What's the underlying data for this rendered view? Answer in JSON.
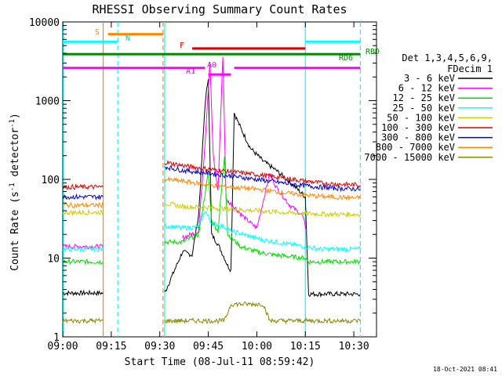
{
  "chart_data": {
    "type": "line",
    "title": "RHESSI Observing Summary Count Rates",
    "xlabel": "Start Time (08-Jul-11 08:59:42)",
    "ylabel_main": "Count Rate (s",
    "ylabel_sup1": "-1",
    "ylabel_mid": " detector",
    "ylabel_sup2": "-1",
    "ylabel_end": ")",
    "footer": "18-Oct-2021 08:41",
    "x_range_minutes": [
      0,
      97
    ],
    "y_range": [
      1,
      10000
    ],
    "y_scale": "log",
    "x_ticks": [
      {
        "m": 0,
        "label": "09:00"
      },
      {
        "m": 15,
        "label": "09:15"
      },
      {
        "m": 30,
        "label": "09:30"
      },
      {
        "m": 45,
        "label": "09:45"
      },
      {
        "m": 60,
        "label": "10:00"
      },
      {
        "m": 75,
        "label": "10:15"
      },
      {
        "m": 90,
        "label": "10:30"
      }
    ],
    "y_ticks": [
      {
        "v": 1,
        "label": "1"
      },
      {
        "v": 10,
        "label": "10"
      },
      {
        "v": 100,
        "label": "100"
      },
      {
        "v": 1000,
        "label": "1000"
      },
      {
        "v": 10000,
        "label": "10000"
      }
    ],
    "legend": {
      "header1": "Det 1,3,4,5,6,9,",
      "header2": "FDecim 1",
      "entries": [
        {
          "label": "3 - 6 keV",
          "color": "#000000"
        },
        {
          "label": "6 - 12 keV",
          "color": "#ff00ff"
        },
        {
          "label": "12 - 25 keV",
          "color": "#00dd00"
        },
        {
          "label": "25 - 50 keV",
          "color": "#00ffff"
        },
        {
          "label": "50 - 100 keV",
          "color": "#cccc00"
        },
        {
          "label": "100 - 300 keV",
          "color": "#dd0000"
        },
        {
          "label": "300 - 800 keV",
          "color": "#0000dd"
        },
        {
          "label": "800 - 7000 keV",
          "color": "#ff8800"
        },
        {
          "label": "7000 - 15000 keV",
          "color": "#888800"
        }
      ]
    },
    "flag_labels": [
      {
        "text": "S",
        "color": "#ff8800"
      },
      {
        "text": "N",
        "color": "#00ffff"
      },
      {
        "text": "F",
        "color": "#dd0000"
      },
      {
        "text": "A1",
        "color": "#ff00ff"
      },
      {
        "text": "A0",
        "color": "#ff00ff"
      },
      {
        "text": "RD6",
        "color": "#008800"
      },
      {
        "text": "RBD",
        "color": "#008800"
      }
    ],
    "series": [
      {
        "name": "3 - 6 keV",
        "segments": [
          [
            [
              0,
              3.6
            ],
            [
              12.5,
              3.6
            ]
          ],
          [
            [
              31.5,
              3.6
            ],
            [
              37,
              12
            ],
            [
              40,
              11
            ],
            [
              42,
              35
            ],
            [
              44,
              900
            ],
            [
              45,
              2000
            ],
            [
              46,
              20
            ],
            [
              48,
              15
            ],
            [
              50,
              10
            ],
            [
              51,
              8
            ],
            [
              52,
              7
            ],
            [
              53,
              700
            ],
            [
              55,
              450
            ],
            [
              58,
              250
            ],
            [
              62,
              170
            ],
            [
              66,
              130
            ],
            [
              70,
              95
            ],
            [
              75,
              60
            ],
            [
              76,
              3.5
            ],
            [
              92,
              3.5
            ]
          ]
        ]
      },
      {
        "name": "6 - 12 keV",
        "segments": [
          [
            [
              0,
              14
            ],
            [
              12.5,
              14
            ]
          ],
          [
            [
              37,
              18
            ],
            [
              42,
              22
            ],
            [
              44,
              300
            ],
            [
              45.5,
              3200
            ],
            [
              46.5,
              200
            ],
            [
              48,
              70
            ],
            [
              49.5,
              3800
            ],
            [
              50.5,
              55
            ],
            [
              53,
              45
            ],
            [
              56,
              33
            ],
            [
              60,
              24
            ],
            [
              64,
              120
            ],
            [
              66,
              80
            ],
            [
              70,
              48
            ],
            [
              74,
              35
            ],
            [
              75.5,
              22
            ]
          ]
        ]
      },
      {
        "name": "12 - 25 keV",
        "segments": [
          [
            [
              0,
              9
            ],
            [
              12.5,
              9
            ]
          ],
          [
            [
              31.5,
              16
            ],
            [
              37,
              16
            ],
            [
              42,
              20
            ],
            [
              45,
              120
            ],
            [
              46,
              30
            ],
            [
              48,
              22
            ],
            [
              50,
              200
            ],
            [
              51,
              20
            ],
            [
              55,
              14
            ],
            [
              60,
              12
            ],
            [
              65,
              11
            ],
            [
              70,
              10.5
            ],
            [
              75,
              10
            ],
            [
              76,
              9
            ],
            [
              92,
              9
            ]
          ]
        ]
      },
      {
        "name": "25 - 50 keV",
        "segments": [
          [
            [
              0,
              13
            ],
            [
              12.5,
              13
            ]
          ],
          [
            [
              31.5,
              26
            ],
            [
              37,
              24
            ],
            [
              42,
              25
            ],
            [
              44,
              40
            ],
            [
              46,
              28
            ],
            [
              50,
              25
            ],
            [
              52,
              22
            ],
            [
              56,
              20
            ],
            [
              62,
              17
            ],
            [
              68,
              15.5
            ],
            [
              75,
              14
            ],
            [
              80,
              13
            ],
            [
              92,
              13
            ]
          ]
        ]
      },
      {
        "name": "50 - 100 keV",
        "segments": [
          [
            [
              0,
              38
            ],
            [
              12.5,
              38
            ]
          ],
          [
            [
              31.5,
              50
            ],
            [
              37,
              45
            ],
            [
              45,
              44
            ],
            [
              52,
              42
            ],
            [
              60,
              40
            ],
            [
              68,
              38
            ],
            [
              75,
              37
            ],
            [
              82,
              36
            ],
            [
              92,
              36
            ]
          ]
        ]
      },
      {
        "name": "100 - 300 keV",
        "segments": [
          [
            [
              0,
              80
            ],
            [
              12.5,
              80
            ]
          ],
          [
            [
              31.5,
              165
            ],
            [
              37,
              150
            ],
            [
              45,
              135
            ],
            [
              52,
              125
            ],
            [
              60,
              115
            ],
            [
              68,
              105
            ],
            [
              75,
              95
            ],
            [
              82,
              88
            ],
            [
              92,
              85
            ]
          ]
        ]
      },
      {
        "name": "300 - 800 keV",
        "segments": [
          [
            [
              0,
              60
            ],
            [
              12.5,
              60
            ]
          ],
          [
            [
              31.5,
              145
            ],
            [
              37,
              130
            ],
            [
              45,
              120
            ],
            [
              52,
              110
            ],
            [
              60,
              100
            ],
            [
              68,
              90
            ],
            [
              75,
              83
            ],
            [
              82,
              78
            ],
            [
              92,
              75
            ]
          ]
        ]
      },
      {
        "name": "800 - 7000 keV",
        "segments": [
          [
            [
              0,
              47
            ],
            [
              12.5,
              47
            ]
          ],
          [
            [
              31.5,
              100
            ],
            [
              37,
              95
            ],
            [
              45,
              85
            ],
            [
              52,
              80
            ],
            [
              60,
              75
            ],
            [
              68,
              68
            ],
            [
              75,
              63
            ],
            [
              82,
              60
            ],
            [
              92,
              58
            ]
          ]
        ]
      },
      {
        "name": "7000 - 15000 keV",
        "segments": [
          [
            [
              0,
              1.6
            ],
            [
              12.5,
              1.6
            ]
          ],
          [
            [
              31.5,
              1.6
            ],
            [
              50,
              1.6
            ],
            [
              52,
              2.6
            ],
            [
              62,
              2.6
            ],
            [
              64,
              1.6
            ],
            [
              92,
              1.6
            ]
          ]
        ]
      }
    ],
    "flags": [
      {
        "name": "saa",
        "color": "#ff8800",
        "y": 7000,
        "x": [
          14,
          31
        ]
      },
      {
        "name": "night",
        "color": "#00ffff",
        "y": 5600,
        "x": [
          0,
          17
        ]
      },
      {
        "name": "night",
        "color": "#00ffff",
        "y": 5600,
        "x": [
          75,
          92
        ]
      },
      {
        "name": "flare",
        "color": "#dd0000",
        "y": 4600,
        "x": [
          40,
          75
        ]
      },
      {
        "name": "decimation",
        "color": "#008800",
        "y": 3900,
        "x": [
          0,
          92
        ]
      },
      {
        "name": "attenuator",
        "color": "#ff00ff",
        "y": 2600,
        "x": [
          0,
          44
        ]
      },
      {
        "name": "attenuator",
        "color": "#ff00ff",
        "y": 2600,
        "x": [
          53,
          92
        ]
      },
      {
        "name": "attenuator",
        "color": "#ff00ff",
        "y": 2150,
        "x": [
          45,
          52
        ]
      }
    ],
    "vlines": [
      {
        "m": 12.5,
        "color": "#ff8800",
        "style": "solid"
      },
      {
        "m": 17,
        "color": "#00ffff",
        "style": "dashed"
      },
      {
        "m": 31,
        "color": "#ff8800",
        "style": "dashed"
      },
      {
        "m": 31.5,
        "color": "#00ffff",
        "style": "solid"
      },
      {
        "m": 75,
        "color": "#00ffff",
        "style": "solid"
      },
      {
        "m": 92,
        "color": "#00ffff",
        "style": "dashed"
      },
      {
        "m": 0.2,
        "color": "#00ffff",
        "style": "solid"
      }
    ]
  }
}
